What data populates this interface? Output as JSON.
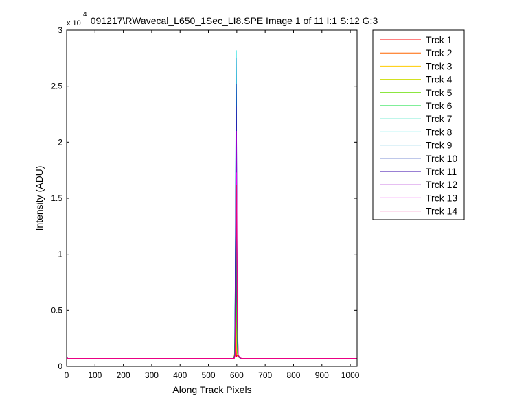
{
  "chart_data": {
    "type": "line",
    "title": "091217\\RWavecal_L650_1Sec_LI8.SPE  Image 1 of 11  I:1  S:12  G:3",
    "xlabel": "Along Track Pixels",
    "ylabel": "Intensity (ADU)",
    "y_exponent_label": "x 10",
    "y_exponent_power": "4",
    "xlim": [
      0,
      1024
    ],
    "ylim": [
      0,
      30000
    ],
    "xticks": [
      0,
      100,
      200,
      300,
      400,
      500,
      600,
      700,
      800,
      900,
      1000
    ],
    "yticks": [
      0,
      5000,
      10000,
      15000,
      20000,
      25000,
      30000
    ],
    "ytick_labels": [
      "0",
      "0.5",
      "1",
      "1.5",
      "2",
      "2.5",
      "3"
    ],
    "grid": false,
    "legend_position": "outside-top-right",
    "baseline": 700,
    "series": [
      {
        "name": "Trck 1",
        "color": "#ff0000",
        "peak_x": 596,
        "peak_y": 3300
      },
      {
        "name": "Trck 2",
        "color": "#ff6600",
        "peak_x": 596,
        "peak_y": 4000
      },
      {
        "name": "Trck 3",
        "color": "#ffcc00",
        "peak_x": 597,
        "peak_y": 5500
      },
      {
        "name": "Trck 4",
        "color": "#ccdd00",
        "peak_x": 597,
        "peak_y": 8000
      },
      {
        "name": "Trck 5",
        "color": "#66dd00",
        "peak_x": 597,
        "peak_y": 12000
      },
      {
        "name": "Trck 6",
        "color": "#00dd33",
        "peak_x": 597,
        "peak_y": 17000
      },
      {
        "name": "Trck 7",
        "color": "#00ddaa",
        "peak_x": 598,
        "peak_y": 24000
      },
      {
        "name": "Trck 8",
        "color": "#00dddd",
        "peak_x": 598,
        "peak_y": 28200
      },
      {
        "name": "Trck 9",
        "color": "#0099cc",
        "peak_x": 598,
        "peak_y": 27500
      },
      {
        "name": "Trck 10",
        "color": "#0022aa",
        "peak_x": 598,
        "peak_y": 25200
      },
      {
        "name": "Trck 11",
        "color": "#3300aa",
        "peak_x": 598,
        "peak_y": 23200
      },
      {
        "name": "Trck 12",
        "color": "#9900cc",
        "peak_x": 599,
        "peak_y": 21000
      },
      {
        "name": "Trck 13",
        "color": "#ee00ee",
        "peak_x": 599,
        "peak_y": 17300
      },
      {
        "name": "Trck 14",
        "color": "#ee0077",
        "peak_x": 599,
        "peak_y": 16200
      }
    ]
  }
}
